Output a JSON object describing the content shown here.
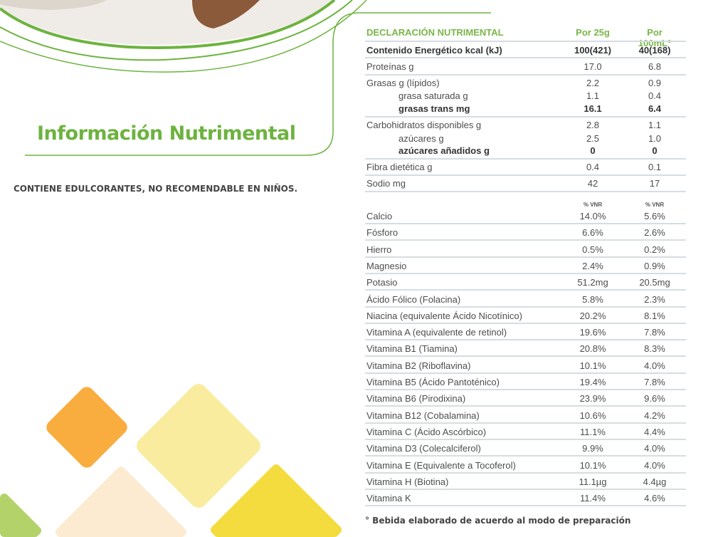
{
  "title": "Información Nutrimental",
  "warning": "CONTIENE EDULCORANTES, NO RECOMENDABLE EN NIÑOS.",
  "colors": {
    "brand_green": "#6db33f",
    "orange": "#f9ad3f",
    "light_yellow": "#f9ec9f",
    "peach": "#fcebd0",
    "yellow": "#f5dc3e",
    "lime": "#b3d36a"
  },
  "table": {
    "header": {
      "label": "DECLARACIÓN NUTRIMENTAL",
      "col1": "Por 25g",
      "col2": "Por 100mL°"
    },
    "energy": {
      "label": "Contenido Energético kcal (kJ)",
      "v1": "100(421)",
      "v2": "40(168)"
    },
    "nutrients": [
      {
        "label": "Proteínas g",
        "v1": "17.0",
        "v2": "6.8",
        "style": "normal",
        "line": true
      },
      {
        "label": "Grasas g (lípidos)",
        "v1": "2.2",
        "v2": "0.9",
        "style": "normal"
      },
      {
        "label": "grasa saturada g",
        "v1": "1.1",
        "v2": "0.4",
        "style": "sub"
      },
      {
        "label": "grasas trans mg",
        "v1": "16.1",
        "v2": "6.4",
        "style": "subbold",
        "line": true
      },
      {
        "label": "Carbohidratos disponibles g",
        "v1": "2.8",
        "v2": "1.1",
        "style": "normal"
      },
      {
        "label": "azúcares g",
        "v1": "2.5",
        "v2": "1.0",
        "style": "sub"
      },
      {
        "label": "azúcares añadidos g",
        "v1": "0",
        "v2": "0",
        "style": "subbold",
        "line": true
      },
      {
        "label": "Fibra dietética g",
        "v1": "0.4",
        "v2": "0.1",
        "style": "normal",
        "line": true
      },
      {
        "label": "Sodio mg",
        "v1": "42",
        "v2": "17",
        "style": "normal",
        "line": true
      }
    ],
    "vnr_label_1": "% VNR",
    "vnr_label_2": "% VNR",
    "micronutrients": [
      {
        "label": "Calcio",
        "v1": "14.0%",
        "v2": "5.6%"
      },
      {
        "label": "Fósforo",
        "v1": "6.6%",
        "v2": "2.6%"
      },
      {
        "label": "Hierro",
        "v1": "0.5%",
        "v2": "0.2%"
      },
      {
        "label": "Magnesio",
        "v1": "2.4%",
        "v2": "0.9%"
      },
      {
        "label": "Potasio",
        "v1": "51.2mg",
        "v2": "20.5mg"
      },
      {
        "label": "Ácido Fólico (Folacina)",
        "v1": "5.8%",
        "v2": "2.3%"
      },
      {
        "label": "Niacina (equivalente Ácido Nicotínico)",
        "v1": "20.2%",
        "v2": "8.1%"
      },
      {
        "label": "Vitamina A (equivalente de retinol)",
        "v1": "19.6%",
        "v2": "7.8%"
      },
      {
        "label": "Vitamina B1 (Tiamina)",
        "v1": "20.8%",
        "v2": "8.3%"
      },
      {
        "label": "Vitamina B2 (Riboflavina)",
        "v1": "10.1%",
        "v2": "4.0%"
      },
      {
        "label": "Vitamina B5 (Ácido Pantoténico)",
        "v1": "19.4%",
        "v2": "7.8%"
      },
      {
        "label": "Vitamina B6 (Pirodixina)",
        "v1": "23.9%",
        "v2": "9.6%"
      },
      {
        "label": "Vitamina B12 (Cobalamina)",
        "v1": "10.6%",
        "v2": "4.2%"
      },
      {
        "label": "Vitamina C (Ácido Ascórbico)",
        "v1": "11.1%",
        "v2": "4.4%"
      },
      {
        "label": "Vitamina D3 (Colecalciferol)",
        "v1": "9.9%",
        "v2": "4.0%"
      },
      {
        "label": "Vitamina E (Equivalente a Tocoferol)",
        "v1": "10.1%",
        "v2": "4.0%"
      },
      {
        "label": "Vitamina H (Biotina)",
        "v1": "11.1µg",
        "v2": "4.4µg"
      },
      {
        "label": "Vitamina K",
        "v1": "11.4%",
        "v2": "4.6%"
      }
    ],
    "footnote": "° Bebida elaborado de acuerdo al modo de preparación"
  }
}
